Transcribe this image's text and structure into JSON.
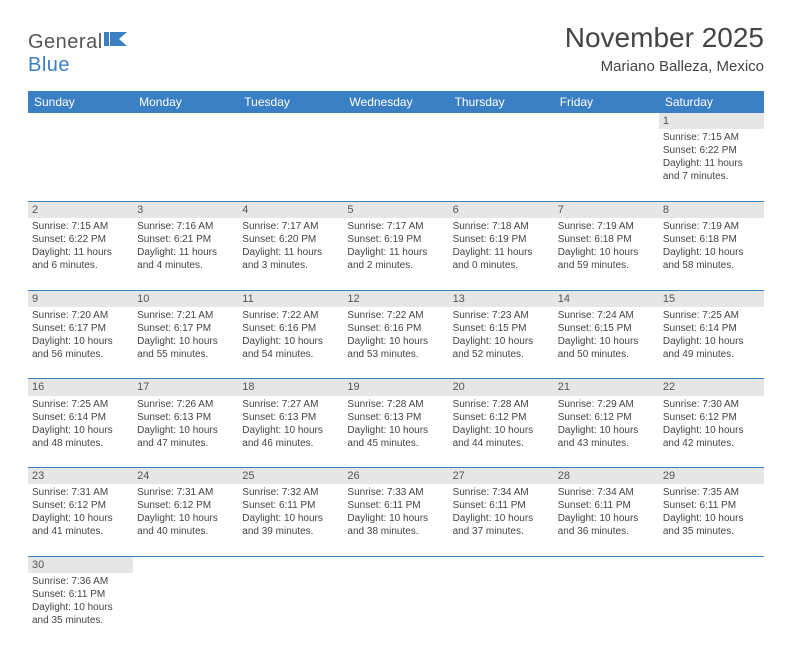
{
  "logo": {
    "text1": "General",
    "text2": "Blue"
  },
  "title": "November 2025",
  "location": "Mariano Balleza, Mexico",
  "headers": [
    "Sunday",
    "Monday",
    "Tuesday",
    "Wednesday",
    "Thursday",
    "Friday",
    "Saturday"
  ],
  "colors": {
    "header_bg": "#3a7fc4",
    "header_text": "#ffffff",
    "daynum_bg": "#e6e6e6",
    "row_divider": "#3a7fc4",
    "text": "#444444",
    "background": "#ffffff"
  },
  "fonts": {
    "title_size": 28,
    "location_size": 15,
    "header_size": 12,
    "daynum_size": 11,
    "cell_size": 10
  },
  "weeks": [
    [
      null,
      null,
      null,
      null,
      null,
      null,
      {
        "d": "1",
        "sr": "Sunrise: 7:15 AM",
        "ss": "Sunset: 6:22 PM",
        "dl1": "Daylight: 11 hours",
        "dl2": "and 7 minutes."
      }
    ],
    [
      {
        "d": "2",
        "sr": "Sunrise: 7:15 AM",
        "ss": "Sunset: 6:22 PM",
        "dl1": "Daylight: 11 hours",
        "dl2": "and 6 minutes."
      },
      {
        "d": "3",
        "sr": "Sunrise: 7:16 AM",
        "ss": "Sunset: 6:21 PM",
        "dl1": "Daylight: 11 hours",
        "dl2": "and 4 minutes."
      },
      {
        "d": "4",
        "sr": "Sunrise: 7:17 AM",
        "ss": "Sunset: 6:20 PM",
        "dl1": "Daylight: 11 hours",
        "dl2": "and 3 minutes."
      },
      {
        "d": "5",
        "sr": "Sunrise: 7:17 AM",
        "ss": "Sunset: 6:19 PM",
        "dl1": "Daylight: 11 hours",
        "dl2": "and 2 minutes."
      },
      {
        "d": "6",
        "sr": "Sunrise: 7:18 AM",
        "ss": "Sunset: 6:19 PM",
        "dl1": "Daylight: 11 hours",
        "dl2": "and 0 minutes."
      },
      {
        "d": "7",
        "sr": "Sunrise: 7:19 AM",
        "ss": "Sunset: 6:18 PM",
        "dl1": "Daylight: 10 hours",
        "dl2": "and 59 minutes."
      },
      {
        "d": "8",
        "sr": "Sunrise: 7:19 AM",
        "ss": "Sunset: 6:18 PM",
        "dl1": "Daylight: 10 hours",
        "dl2": "and 58 minutes."
      }
    ],
    [
      {
        "d": "9",
        "sr": "Sunrise: 7:20 AM",
        "ss": "Sunset: 6:17 PM",
        "dl1": "Daylight: 10 hours",
        "dl2": "and 56 minutes."
      },
      {
        "d": "10",
        "sr": "Sunrise: 7:21 AM",
        "ss": "Sunset: 6:17 PM",
        "dl1": "Daylight: 10 hours",
        "dl2": "and 55 minutes."
      },
      {
        "d": "11",
        "sr": "Sunrise: 7:22 AM",
        "ss": "Sunset: 6:16 PM",
        "dl1": "Daylight: 10 hours",
        "dl2": "and 54 minutes."
      },
      {
        "d": "12",
        "sr": "Sunrise: 7:22 AM",
        "ss": "Sunset: 6:16 PM",
        "dl1": "Daylight: 10 hours",
        "dl2": "and 53 minutes."
      },
      {
        "d": "13",
        "sr": "Sunrise: 7:23 AM",
        "ss": "Sunset: 6:15 PM",
        "dl1": "Daylight: 10 hours",
        "dl2": "and 52 minutes."
      },
      {
        "d": "14",
        "sr": "Sunrise: 7:24 AM",
        "ss": "Sunset: 6:15 PM",
        "dl1": "Daylight: 10 hours",
        "dl2": "and 50 minutes."
      },
      {
        "d": "15",
        "sr": "Sunrise: 7:25 AM",
        "ss": "Sunset: 6:14 PM",
        "dl1": "Daylight: 10 hours",
        "dl2": "and 49 minutes."
      }
    ],
    [
      {
        "d": "16",
        "sr": "Sunrise: 7:25 AM",
        "ss": "Sunset: 6:14 PM",
        "dl1": "Daylight: 10 hours",
        "dl2": "and 48 minutes."
      },
      {
        "d": "17",
        "sr": "Sunrise: 7:26 AM",
        "ss": "Sunset: 6:13 PM",
        "dl1": "Daylight: 10 hours",
        "dl2": "and 47 minutes."
      },
      {
        "d": "18",
        "sr": "Sunrise: 7:27 AM",
        "ss": "Sunset: 6:13 PM",
        "dl1": "Daylight: 10 hours",
        "dl2": "and 46 minutes."
      },
      {
        "d": "19",
        "sr": "Sunrise: 7:28 AM",
        "ss": "Sunset: 6:13 PM",
        "dl1": "Daylight: 10 hours",
        "dl2": "and 45 minutes."
      },
      {
        "d": "20",
        "sr": "Sunrise: 7:28 AM",
        "ss": "Sunset: 6:12 PM",
        "dl1": "Daylight: 10 hours",
        "dl2": "and 44 minutes."
      },
      {
        "d": "21",
        "sr": "Sunrise: 7:29 AM",
        "ss": "Sunset: 6:12 PM",
        "dl1": "Daylight: 10 hours",
        "dl2": "and 43 minutes."
      },
      {
        "d": "22",
        "sr": "Sunrise: 7:30 AM",
        "ss": "Sunset: 6:12 PM",
        "dl1": "Daylight: 10 hours",
        "dl2": "and 42 minutes."
      }
    ],
    [
      {
        "d": "23",
        "sr": "Sunrise: 7:31 AM",
        "ss": "Sunset: 6:12 PM",
        "dl1": "Daylight: 10 hours",
        "dl2": "and 41 minutes."
      },
      {
        "d": "24",
        "sr": "Sunrise: 7:31 AM",
        "ss": "Sunset: 6:12 PM",
        "dl1": "Daylight: 10 hours",
        "dl2": "and 40 minutes."
      },
      {
        "d": "25",
        "sr": "Sunrise: 7:32 AM",
        "ss": "Sunset: 6:11 PM",
        "dl1": "Daylight: 10 hours",
        "dl2": "and 39 minutes."
      },
      {
        "d": "26",
        "sr": "Sunrise: 7:33 AM",
        "ss": "Sunset: 6:11 PM",
        "dl1": "Daylight: 10 hours",
        "dl2": "and 38 minutes."
      },
      {
        "d": "27",
        "sr": "Sunrise: 7:34 AM",
        "ss": "Sunset: 6:11 PM",
        "dl1": "Daylight: 10 hours",
        "dl2": "and 37 minutes."
      },
      {
        "d": "28",
        "sr": "Sunrise: 7:34 AM",
        "ss": "Sunset: 6:11 PM",
        "dl1": "Daylight: 10 hours",
        "dl2": "and 36 minutes."
      },
      {
        "d": "29",
        "sr": "Sunrise: 7:35 AM",
        "ss": "Sunset: 6:11 PM",
        "dl1": "Daylight: 10 hours",
        "dl2": "and 35 minutes."
      }
    ],
    [
      {
        "d": "30",
        "sr": "Sunrise: 7:36 AM",
        "ss": "Sunset: 6:11 PM",
        "dl1": "Daylight: 10 hours",
        "dl2": "and 35 minutes."
      },
      null,
      null,
      null,
      null,
      null,
      null
    ]
  ]
}
